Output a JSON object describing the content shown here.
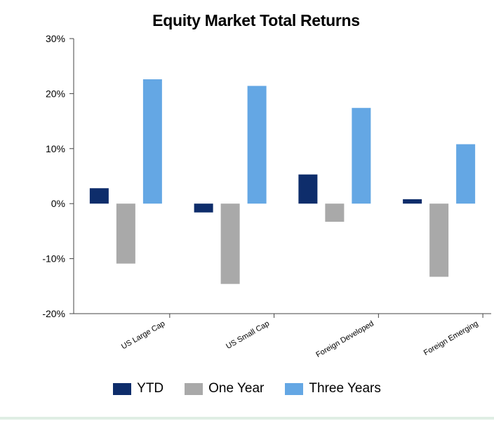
{
  "chart_data": {
    "type": "bar",
    "title": "Equity Market Total Returns",
    "xlabel": "",
    "ylabel": "",
    "categories": [
      "US Large Cap",
      "US Small Cap",
      "Foreign Developed",
      "Foreign Emerging"
    ],
    "series": [
      {
        "name": "YTD",
        "values": [
          2.8,
          -1.6,
          5.3,
          0.8
        ]
      },
      {
        "name": "One Year",
        "values": [
          -10.9,
          -14.6,
          -3.3,
          -13.3
        ]
      },
      {
        "name": "Three Years",
        "values": [
          22.6,
          21.4,
          17.4,
          10.8
        ]
      }
    ],
    "ylim": [
      -20,
      30
    ],
    "yticks": [
      "30%",
      "20%",
      "10%",
      "0%",
      "-10%",
      "-20%"
    ],
    "ytick_values": [
      30,
      20,
      10,
      0,
      -10,
      -20
    ],
    "colors": [
      "#0e2d6b",
      "#a9a9a9",
      "#64a7e4"
    ],
    "legend_position": "bottom",
    "grid": false
  }
}
